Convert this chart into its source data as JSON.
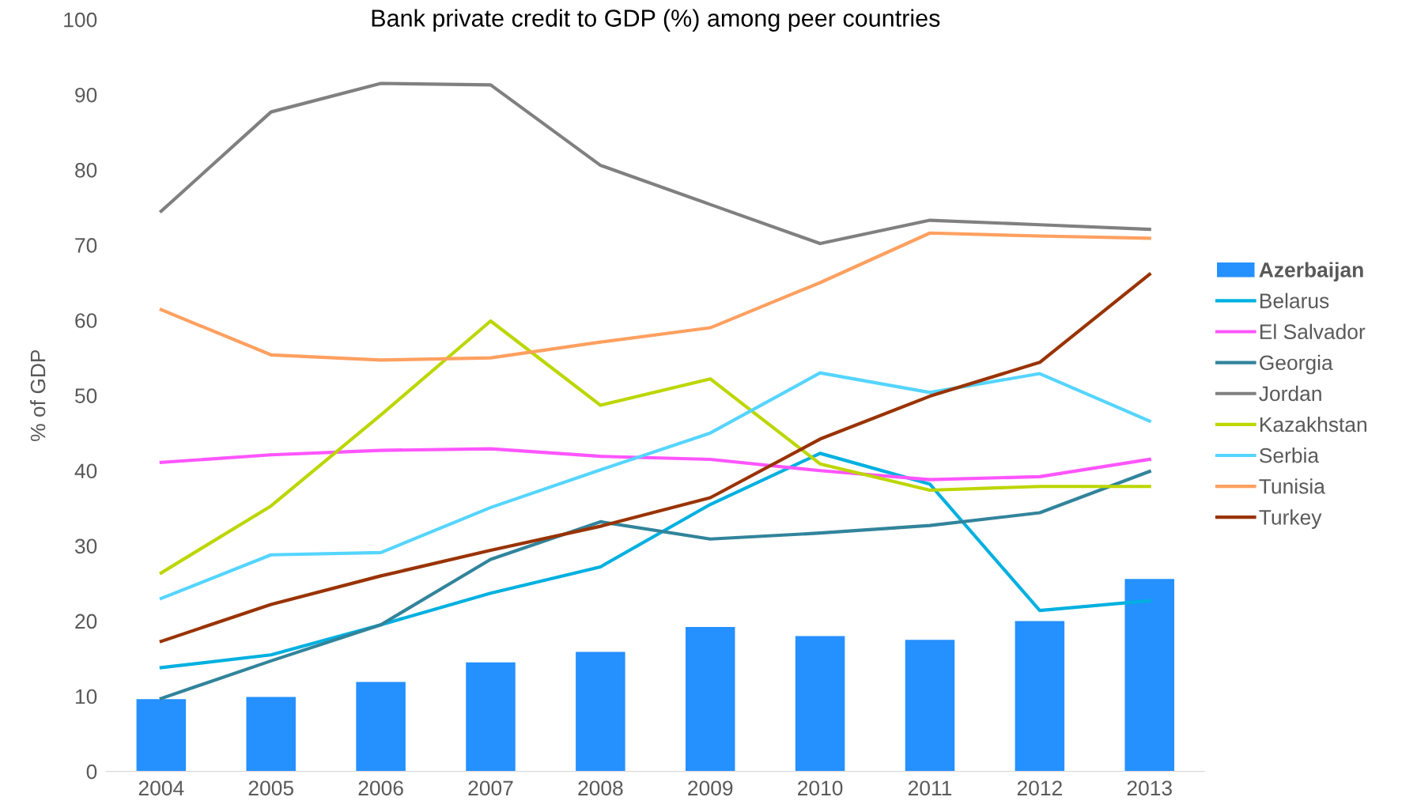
{
  "chart_data": {
    "type": "line",
    "title": "Bank private credit to GDP (%) among peer countries",
    "ylabel": "% of GDP",
    "categories": [
      "2004",
      "2005",
      "2006",
      "2007",
      "2008",
      "2009",
      "2010",
      "2011",
      "2012",
      "2013"
    ],
    "ylim": [
      0,
      100
    ],
    "yticks": [
      0,
      10,
      20,
      30,
      40,
      50,
      60,
      70,
      80,
      90,
      100
    ],
    "grid": false,
    "legend": "right",
    "marker": "none",
    "line_style": "solid",
    "series": [
      {
        "name": "Azerbaijan",
        "type": "bar",
        "color": "#2590ff",
        "values": [
          9.6,
          9.9,
          11.9,
          14.5,
          15.9,
          19.2,
          18.0,
          17.5,
          20.0,
          25.6
        ]
      },
      {
        "name": "Belarus",
        "color": "#00b0e0",
        "values": [
          13.8,
          15.5,
          19.5,
          23.7,
          27.2,
          35.5,
          42.3,
          38.2,
          21.4,
          22.7
        ]
      },
      {
        "name": "El Salvador",
        "color": "#ff55ff",
        "values": [
          41.1,
          42.1,
          42.7,
          42.9,
          41.9,
          41.5,
          40.0,
          38.8,
          39.2,
          41.5
        ]
      },
      {
        "name": "Georgia",
        "color": "#31849b",
        "values": [
          9.7,
          14.7,
          19.5,
          28.2,
          33.2,
          30.9,
          31.7,
          32.7,
          34.4,
          39.9
        ]
      },
      {
        "name": "Jordan",
        "color": "#808080",
        "values": [
          74.5,
          87.7,
          91.5,
          91.3,
          80.6,
          75.4,
          70.2,
          73.3,
          72.7,
          72.1
        ]
      },
      {
        "name": "Kazakhstan",
        "color": "#bcd600",
        "values": [
          26.4,
          35.3,
          47.4,
          59.9,
          48.7,
          52.2,
          40.9,
          37.4,
          37.9,
          37.9
        ]
      },
      {
        "name": "Serbia",
        "color": "#55d5ff",
        "values": [
          23.0,
          28.8,
          29.1,
          35.1,
          40.1,
          45.0,
          53.0,
          50.4,
          52.9,
          46.6
        ]
      },
      {
        "name": "Tunisia",
        "color": "#ffa060",
        "values": [
          61.4,
          55.4,
          54.7,
          55.0,
          57.1,
          59.0,
          65.0,
          71.6,
          71.2,
          70.9
        ]
      },
      {
        "name": "Turkey",
        "color": "#993300",
        "values": [
          17.3,
          22.2,
          26.0,
          29.4,
          32.6,
          36.4,
          44.2,
          49.9,
          54.4,
          66.1
        ]
      }
    ]
  }
}
